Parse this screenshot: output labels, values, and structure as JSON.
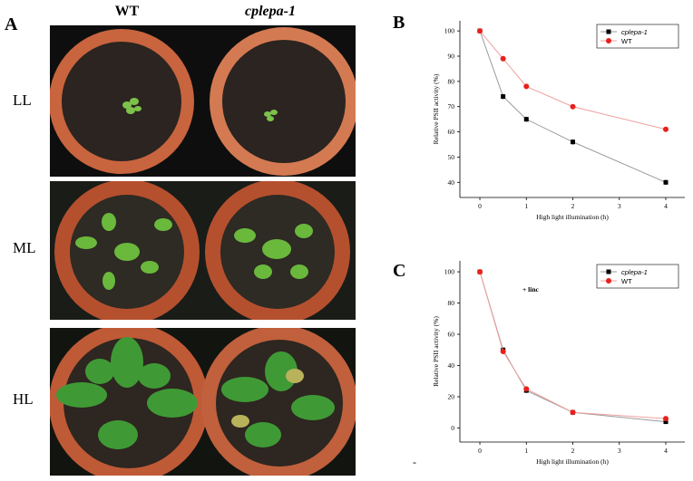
{
  "figure": {
    "panel_a": "A",
    "col_wt": "WT",
    "col_mutant": "cplepa-1",
    "row_ll": "LL",
    "row_ml": "ML",
    "row_hl": "HL",
    "stray_mark": "-"
  },
  "chart_data": [
    {
      "type": "line",
      "panel": "B",
      "y_label": "Relative PSII activity (%)",
      "x_label": "High light illumination (h)",
      "x": [
        0,
        0.5,
        1,
        2,
        4
      ],
      "xlim": [
        -0.43,
        4.41
      ],
      "xticks": [
        0,
        1,
        2,
        3,
        4
      ],
      "ylim": [
        34,
        104
      ],
      "yticks": [
        40,
        50,
        60,
        70,
        80,
        90,
        100
      ],
      "legend": "top-right",
      "series": [
        {
          "name": "cplepa-1",
          "color": "#000000",
          "line_color": "#9a9a9a",
          "marker": "square",
          "values": [
            100,
            74,
            65,
            56,
            40
          ],
          "errors": [
            0.5,
            1,
            1,
            1,
            1
          ]
        },
        {
          "name": "WT",
          "color": "#e8201c",
          "line_color": "#f0a0a0",
          "marker": "circle",
          "values": [
            100,
            89,
            78,
            70,
            61
          ],
          "errors": [
            0.5,
            1,
            1,
            0.8,
            1
          ]
        }
      ]
    },
    {
      "type": "line",
      "panel": "C",
      "y_label": "Relative PSII activity (%)",
      "x_label": "High light illumination (h)",
      "annotation": "+ linc",
      "x": [
        0,
        0.5,
        1,
        2,
        4
      ],
      "xlim": [
        -0.43,
        4.41
      ],
      "xticks": [
        0,
        1,
        2,
        3,
        4
      ],
      "ylim": [
        -9,
        107
      ],
      "yticks": [
        0,
        20,
        40,
        60,
        80,
        100
      ],
      "legend": "top-right",
      "series": [
        {
          "name": "cplepa-1",
          "color": "#000000",
          "line_color": "#9a9a9a",
          "marker": "square",
          "values": [
            100,
            50,
            24,
            10,
            4
          ],
          "errors": [
            0.5,
            1.5,
            1.5,
            0.8,
            1
          ]
        },
        {
          "name": "WT",
          "color": "#e8201c",
          "line_color": "#f0a0a0",
          "marker": "circle",
          "values": [
            100,
            49,
            25,
            10,
            6
          ],
          "errors": [
            0.5,
            1.5,
            1.5,
            0.8,
            1
          ]
        }
      ]
    }
  ]
}
